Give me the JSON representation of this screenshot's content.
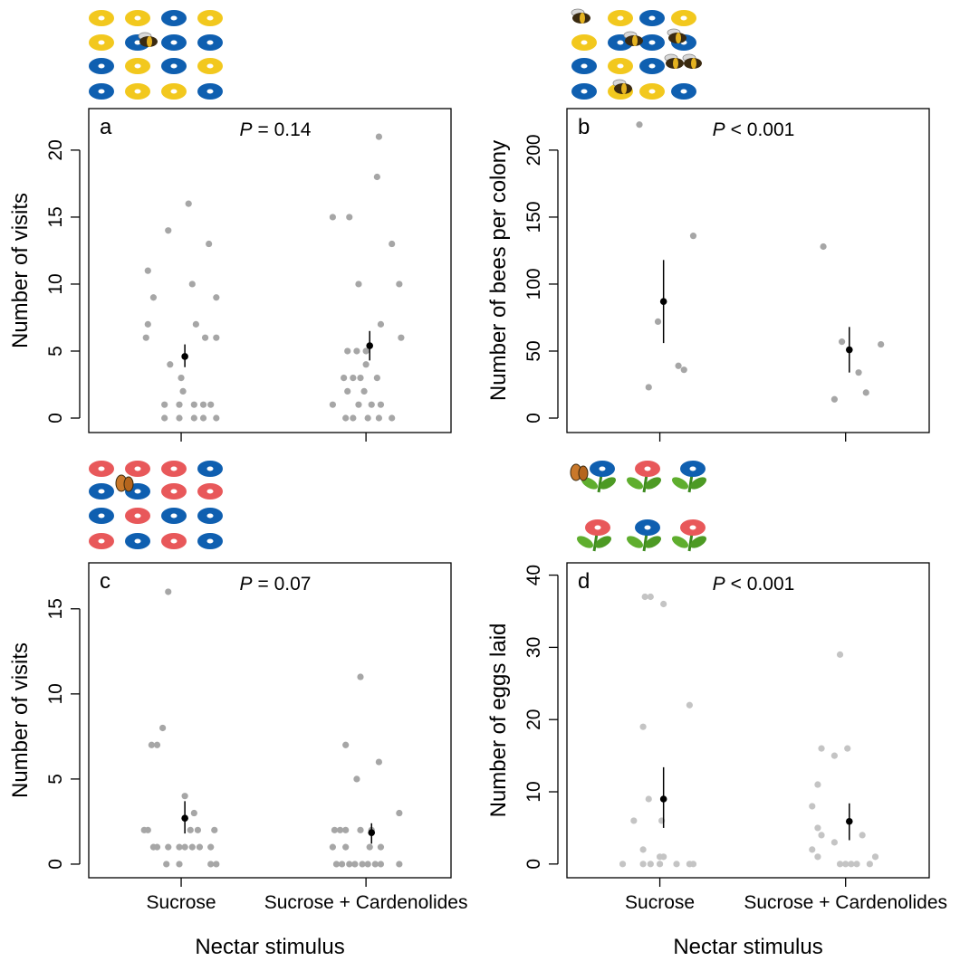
{
  "chart_data": [
    {
      "type": "strip",
      "label": "a",
      "stat_symbol": "P",
      "stat_text": "= 0.14",
      "ylabel": "Number of visits",
      "xlim": [
        0.5,
        2.46
      ],
      "ylim": [
        -1.08,
        23.1
      ],
      "xticks": [
        1,
        2
      ],
      "show_xtick_labels": false,
      "yticks": [
        0,
        5,
        10,
        15,
        20
      ],
      "points": {
        "color": "#a6a6a6",
        "x": [
          0.82,
          0.85,
          0.82,
          0.81,
          0.93,
          1.04,
          0.94,
          1.0,
          1.01,
          1.06,
          1.08,
          1.15,
          1.19,
          1.13,
          1.19,
          0.91,
          0.99,
          1.07,
          1.12,
          1.16,
          0.91,
          0.99,
          1.07,
          1.12,
          1.19,
          1.82,
          1.91,
          1.96,
          2.07,
          2.06,
          2.14,
          2.18,
          2.19,
          2.08,
          1.9,
          1.95,
          2.0,
          1.88,
          1.93,
          1.97,
          2.06,
          2.0,
          1.9,
          1.99,
          1.82,
          1.96,
          2.03,
          2.08,
          1.89,
          1.93,
          2.01,
          2.07,
          2.14
        ],
        "y": [
          11,
          9,
          7,
          6,
          14,
          16,
          4,
          3,
          2,
          10,
          7,
          13,
          9,
          6,
          6,
          1,
          1,
          1,
          1,
          1,
          0,
          0,
          0,
          0,
          0,
          15,
          15,
          10,
          21,
          18,
          13,
          10,
          6,
          7,
          5,
          5,
          5,
          3,
          3,
          3,
          3,
          4,
          2,
          2,
          1,
          1,
          1,
          1,
          0,
          0,
          0,
          0,
          0
        ]
      },
      "means": {
        "color": "#000000",
        "x": [
          1.02,
          2.02
        ],
        "values": [
          4.6,
          5.4
        ],
        "lower": [
          3.8,
          4.3
        ],
        "upper": [
          5.5,
          6.5
        ]
      }
    },
    {
      "type": "strip",
      "label": "b",
      "stat_symbol": "P",
      "stat_text": "< 0.001",
      "ylabel": "Number of bees per colony",
      "xlim": [
        0.5,
        2.45
      ],
      "ylim": [
        -10.8,
        231
      ],
      "xticks": [
        1,
        2
      ],
      "show_xtick_labels": false,
      "yticks": [
        0,
        50,
        100,
        150,
        200
      ],
      "points": {
        "color": "#a6a6a6",
        "x": [
          0.89,
          1.18,
          0.99,
          1.1,
          1.13,
          0.94,
          1.88,
          1.98,
          2.19,
          2.07,
          2.11,
          1.94
        ],
        "y": [
          219,
          136,
          72,
          39,
          36,
          23,
          128,
          57,
          55,
          34,
          19,
          14
        ]
      },
      "means": {
        "color": "#000000",
        "x": [
          1.02,
          2.02
        ],
        "values": [
          87,
          51
        ],
        "lower": [
          56,
          34
        ],
        "upper": [
          118,
          68
        ]
      }
    },
    {
      "type": "strip",
      "label": "c",
      "stat_symbol": "P",
      "stat_text": "= 0.07",
      "ylabel": "Number of visits",
      "xlabel": "Nectar stimulus",
      "xlim": [
        0.5,
        2.46
      ],
      "ylim": [
        -0.8,
        17.7
      ],
      "xticks": [
        {
          "value": 1,
          "label": "Sucrose"
        },
        {
          "value": 2,
          "label": "Sucrose + Cardenolides"
        }
      ],
      "show_xtick_labels": true,
      "yticks": [
        0,
        5,
        10,
        15
      ],
      "points": {
        "color": "#a6a6a6",
        "x": [
          0.93,
          0.84,
          0.87,
          0.9,
          1.02,
          1.07,
          0.8,
          0.82,
          1.05,
          1.09,
          1.18,
          0.85,
          0.87,
          0.93,
          0.99,
          1.02,
          1.06,
          1.1,
          1.16,
          0.92,
          0.99,
          1.16,
          1.19,
          1.97,
          1.89,
          1.95,
          2.07,
          2.18,
          1.83,
          1.86,
          1.89,
          1.97,
          2.03,
          1.82,
          1.89,
          2.02,
          2.08,
          1.84,
          1.87,
          1.91,
          1.94,
          1.98,
          2.01,
          2.05,
          2.08,
          2.18
        ],
        "y": [
          16,
          7,
          7,
          8,
          4,
          3,
          2,
          2,
          2,
          2,
          2,
          1,
          1,
          1,
          1,
          1,
          1,
          1,
          1,
          0,
          0,
          0,
          0,
          11,
          7,
          5,
          6,
          3,
          2,
          2,
          2,
          2,
          2,
          1,
          1,
          1,
          1,
          0,
          0,
          0,
          0,
          0,
          0,
          0,
          0,
          0
        ]
      },
      "means": {
        "color": "#000000",
        "x": [
          1.02,
          2.03
        ],
        "values": [
          2.7,
          1.85
        ],
        "lower": [
          1.8,
          1.2
        ],
        "upper": [
          3.7,
          2.4
        ]
      }
    },
    {
      "type": "strip",
      "label": "d",
      "stat_symbol": "P",
      "stat_text": "< 0.001",
      "ylabel": "Number of eggs laid",
      "xlabel": "Nectar stimulus",
      "xlim": [
        0.5,
        2.45
      ],
      "ylim": [
        -1.9,
        41.7
      ],
      "xticks": [
        {
          "value": 1,
          "label": "Sucrose"
        },
        {
          "value": 2,
          "label": "Sucrose + Cardenolides"
        }
      ],
      "show_xtick_labels": true,
      "yticks": [
        0,
        10,
        20,
        30,
        40
      ],
      "points": {
        "color": "#c4c4c4",
        "x": [
          0.92,
          0.95,
          1.02,
          1.16,
          0.91,
          0.94,
          0.86,
          1.01,
          0.91,
          1.0,
          1.02,
          0.8,
          0.91,
          0.95,
          1.0,
          1.09,
          1.16,
          1.18,
          1.97,
          1.87,
          2.01,
          1.94,
          1.85,
          1.82,
          1.85,
          1.87,
          2.09,
          1.94,
          1.82,
          1.85,
          2.16,
          1.97,
          2.0,
          2.03,
          2.06,
          2.13
        ],
        "y": [
          37,
          37,
          36,
          22,
          19,
          9,
          6,
          6,
          2,
          1,
          1,
          0,
          0,
          0,
          0,
          0,
          0,
          0,
          29,
          16,
          16,
          15,
          11,
          8,
          5,
          4,
          4,
          3,
          2,
          1,
          1,
          0,
          0,
          0,
          0,
          0
        ]
      },
      "means": {
        "color": "#000000",
        "x": [
          1.02,
          2.02
        ],
        "values": [
          9,
          5.9
        ],
        "lower": [
          5,
          3.3
        ],
        "upper": [
          13.4,
          8.4
        ]
      }
    }
  ]
}
